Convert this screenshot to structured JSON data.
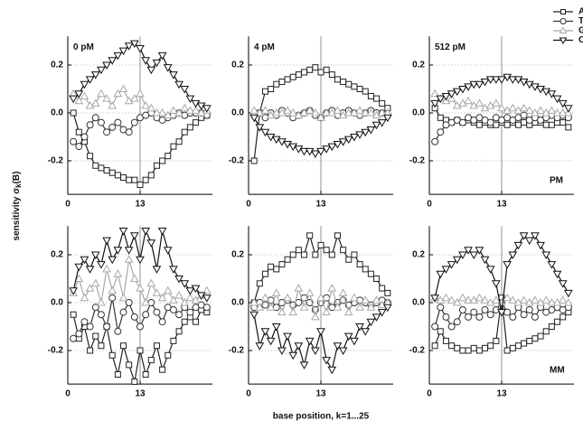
{
  "chart_data": {
    "type": "line",
    "xlabel": "base position, k=1...25",
    "ylabel": {
      "main": "sensitivity σ",
      "sub": "k",
      "end": "(B)"
    },
    "x": [
      1,
      2,
      3,
      4,
      5,
      6,
      7,
      8,
      9,
      10,
      11,
      12,
      13,
      14,
      15,
      16,
      17,
      18,
      19,
      20,
      21,
      22,
      23,
      24,
      25
    ],
    "xlim": [
      0,
      26
    ],
    "xticks": [
      0,
      13
    ],
    "ylim": [
      -0.34,
      0.32
    ],
    "yticks": [
      -0.2,
      {
        "value": 0,
        "label": "0.0"
      },
      0.2
    ],
    "grid": true,
    "legend": [
      {
        "name": "A",
        "color": "#222222",
        "marker": "square"
      },
      {
        "name": "T",
        "color": "#333333",
        "marker": "circle"
      },
      {
        "name": "G",
        "color": "#a8a8a8",
        "marker": "triangle-up"
      },
      {
        "name": "C",
        "color": "#111111",
        "marker": "triangle-down"
      }
    ],
    "rows": [
      "PM",
      "MM"
    ],
    "panels": [
      {
        "title": "0 pM",
        "series": [
          {
            "values": [
              0.0,
              -0.08,
              -0.12,
              -0.18,
              -0.22,
              -0.23,
              -0.24,
              -0.25,
              -0.26,
              -0.27,
              -0.28,
              -0.28,
              -0.3,
              -0.28,
              -0.26,
              -0.22,
              -0.2,
              -0.18,
              -0.14,
              -0.12,
              -0.08,
              -0.06,
              -0.04,
              -0.02,
              -0.01
            ]
          },
          {
            "values": [
              -0.12,
              -0.14,
              -0.1,
              -0.05,
              -0.02,
              -0.04,
              -0.08,
              -0.06,
              -0.04,
              -0.07,
              -0.08,
              -0.04,
              -0.02,
              -0.01,
              0.0,
              -0.02,
              -0.03,
              -0.02,
              -0.01,
              0.0,
              -0.01,
              0.0,
              0.0,
              0.0,
              -0.01
            ]
          },
          {
            "values": [
              0.08,
              0.05,
              0.07,
              0.03,
              0.04,
              0.08,
              0.06,
              0.03,
              0.08,
              0.1,
              0.05,
              0.06,
              0.08,
              0.03,
              0.02,
              0.0,
              0.0,
              -0.01,
              0.01,
              0.0,
              0.02,
              0.01,
              0.01,
              0.0,
              0.01
            ]
          },
          {
            "values": [
              0.06,
              0.08,
              0.12,
              0.14,
              0.16,
              0.18,
              0.2,
              0.22,
              0.24,
              0.26,
              0.28,
              0.29,
              0.27,
              0.22,
              0.18,
              0.21,
              0.24,
              0.19,
              0.16,
              0.12,
              0.1,
              0.06,
              0.04,
              0.03,
              0.02
            ]
          }
        ]
      },
      {
        "title": "4 pM",
        "series": [
          {
            "values": [
              -0.2,
              0.0,
              0.09,
              0.1,
              0.12,
              0.13,
              0.14,
              0.15,
              0.16,
              0.17,
              0.18,
              0.19,
              0.17,
              0.18,
              0.16,
              0.14,
              0.13,
              0.12,
              0.11,
              0.1,
              0.09,
              0.07,
              0.06,
              0.04,
              0.02
            ]
          },
          {
            "values": [
              -0.01,
              0.0,
              -0.02,
              0.0,
              -0.01,
              0.01,
              0.0,
              -0.02,
              -0.01,
              0.0,
              0.01,
              -0.01,
              -0.02,
              0.0,
              0.01,
              -0.01,
              0.0,
              0.01,
              0.0,
              -0.01,
              0.0,
              0.01,
              0.0,
              0.0,
              -0.01
            ]
          },
          {
            "values": [
              0.01,
              0.0,
              0.01,
              -0.01,
              0.0,
              0.0,
              0.01,
              0.0,
              -0.01,
              0.0,
              0.01,
              0.0,
              -0.02,
              0.0,
              0.0,
              0.01,
              -0.01,
              0.0,
              0.0,
              0.01,
              0.0,
              0.0,
              -0.01,
              0.0,
              0.0
            ]
          },
          {
            "values": [
              -0.02,
              -0.06,
              -0.08,
              -0.1,
              -0.11,
              -0.12,
              -0.13,
              -0.14,
              -0.15,
              -0.16,
              -0.16,
              -0.17,
              -0.16,
              -0.15,
              -0.14,
              -0.13,
              -0.12,
              -0.11,
              -0.1,
              -0.09,
              -0.08,
              -0.07,
              -0.05,
              -0.04,
              -0.02
            ]
          }
        ]
      },
      {
        "title": "512 pM",
        "series": [
          {
            "values": [
              0.02,
              -0.02,
              -0.03,
              -0.04,
              -0.03,
              -0.04,
              -0.03,
              -0.04,
              -0.05,
              -0.04,
              -0.05,
              -0.05,
              -0.04,
              -0.05,
              -0.04,
              -0.05,
              -0.04,
              -0.05,
              -0.04,
              -0.04,
              -0.05,
              -0.05,
              -0.04,
              -0.04,
              -0.06
            ]
          },
          {
            "values": [
              -0.12,
              -0.08,
              -0.05,
              -0.04,
              -0.03,
              -0.04,
              -0.02,
              -0.03,
              -0.02,
              -0.03,
              -0.04,
              -0.02,
              -0.03,
              -0.02,
              -0.03,
              -0.02,
              -0.01,
              -0.03,
              -0.02,
              -0.03,
              -0.02,
              -0.01,
              -0.02,
              -0.01,
              -0.02
            ]
          },
          {
            "values": [
              0.08,
              0.06,
              0.05,
              0.06,
              0.03,
              0.04,
              0.05,
              0.03,
              0.04,
              0.02,
              0.03,
              0.04,
              0.02,
              0.01,
              0.02,
              0.01,
              0.02,
              0.01,
              0.0,
              0.01,
              0.0,
              0.01,
              0.0,
              0.0,
              0.0
            ]
          },
          {
            "values": [
              0.04,
              0.06,
              0.07,
              0.08,
              0.09,
              0.1,
              0.11,
              0.12,
              0.12,
              0.13,
              0.14,
              0.14,
              0.14,
              0.15,
              0.14,
              0.14,
              0.13,
              0.12,
              0.11,
              0.1,
              0.09,
              0.08,
              0.06,
              0.04,
              0.02
            ]
          }
        ]
      },
      {
        "series": [
          {
            "values": [
              -0.05,
              -0.15,
              -0.1,
              -0.2,
              -0.14,
              -0.18,
              -0.1,
              -0.22,
              -0.3,
              -0.18,
              -0.26,
              -0.33,
              -0.2,
              -0.3,
              -0.24,
              -0.18,
              -0.28,
              -0.22,
              -0.16,
              -0.12,
              -0.08,
              -0.06,
              -0.08,
              -0.03,
              -0.04
            ]
          },
          {
            "values": [
              -0.15,
              -0.13,
              -0.08,
              -0.1,
              -0.02,
              -0.05,
              -0.1,
              0.02,
              -0.12,
              -0.04,
              0.0,
              -0.06,
              -0.1,
              -0.05,
              0.0,
              -0.04,
              -0.08,
              -0.02,
              -0.03,
              -0.05,
              -0.02,
              -0.04,
              -0.02,
              -0.01,
              -0.02
            ]
          },
          {
            "values": [
              0.04,
              0.1,
              0.02,
              0.06,
              0.08,
              0.0,
              0.14,
              0.05,
              0.12,
              0.02,
              0.18,
              0.1,
              0.06,
              0.0,
              0.08,
              0.04,
              0.02,
              0.05,
              0.01,
              0.03,
              0.0,
              0.02,
              0.01,
              0.03,
              0.05
            ]
          },
          {
            "values": [
              0.05,
              0.15,
              0.18,
              0.14,
              0.2,
              0.16,
              0.26,
              0.18,
              0.22,
              0.3,
              0.22,
              0.28,
              0.18,
              0.3,
              0.25,
              0.14,
              0.3,
              0.22,
              0.14,
              0.1,
              0.08,
              0.05,
              0.06,
              0.03,
              0.02
            ]
          }
        ]
      },
      {
        "series": [
          {
            "values": [
              0.0,
              0.08,
              0.12,
              0.15,
              0.14,
              0.16,
              0.18,
              0.2,
              0.22,
              0.2,
              0.28,
              0.2,
              0.24,
              0.22,
              0.2,
              0.28,
              0.22,
              0.18,
              0.2,
              0.16,
              0.14,
              0.12,
              0.1,
              0.06,
              0.04
            ]
          },
          {
            "values": [
              -0.02,
              0.0,
              -0.01,
              0.01,
              -0.02,
              0.0,
              0.01,
              -0.01,
              0.0,
              0.02,
              0.0,
              -0.03,
              0.0,
              0.02,
              -0.02,
              0.0,
              0.01,
              -0.01,
              0.0,
              0.01,
              0.0,
              -0.01,
              0.0,
              0.01,
              0.0
            ]
          },
          {
            "values": [
              0.0,
              -0.02,
              0.02,
              -0.02,
              0.04,
              -0.04,
              0.02,
              -0.04,
              0.06,
              -0.02,
              0.04,
              -0.06,
              0.02,
              -0.04,
              0.06,
              -0.02,
              0.04,
              -0.04,
              0.02,
              -0.02,
              0.01,
              -0.02,
              0.01,
              -0.01,
              0.0
            ]
          },
          {
            "values": [
              -0.05,
              -0.18,
              -0.12,
              -0.16,
              -0.1,
              -0.2,
              -0.14,
              -0.22,
              -0.18,
              -0.26,
              -0.16,
              -0.2,
              -0.12,
              -0.24,
              -0.28,
              -0.18,
              -0.2,
              -0.14,
              -0.16,
              -0.1,
              -0.12,
              -0.08,
              -0.06,
              -0.04,
              -0.02
            ]
          }
        ]
      },
      {
        "series": [
          {
            "values": [
              -0.18,
              -0.12,
              -0.16,
              -0.18,
              -0.19,
              -0.2,
              -0.2,
              -0.19,
              -0.2,
              -0.19,
              -0.18,
              -0.16,
              0.02,
              -0.2,
              -0.19,
              -0.18,
              -0.17,
              -0.16,
              -0.15,
              -0.14,
              -0.12,
              -0.1,
              -0.08,
              -0.06,
              -0.04
            ]
          },
          {
            "values": [
              -0.1,
              -0.02,
              -0.06,
              -0.1,
              -0.08,
              -0.03,
              -0.06,
              -0.04,
              -0.06,
              -0.03,
              -0.05,
              -0.03,
              0.0,
              -0.04,
              -0.06,
              -0.02,
              -0.05,
              -0.03,
              -0.06,
              -0.02,
              -0.04,
              -0.03,
              -0.02,
              -0.03,
              -0.02
            ]
          },
          {
            "values": [
              0.02,
              0.01,
              0.02,
              0.01,
              0.0,
              0.02,
              0.01,
              0.01,
              0.02,
              0.01,
              0.0,
              0.01,
              0.0,
              0.02,
              0.01,
              0.0,
              0.01,
              0.0,
              0.01,
              0.0,
              0.01,
              0.0,
              0.0,
              0.01,
              0.0
            ]
          },
          {
            "values": [
              0.02,
              0.12,
              0.14,
              0.16,
              0.18,
              0.2,
              0.22,
              0.2,
              0.22,
              0.18,
              0.14,
              0.08,
              -0.04,
              0.16,
              0.2,
              0.24,
              0.28,
              0.26,
              0.28,
              0.24,
              0.2,
              0.16,
              0.12,
              0.08,
              0.04
            ]
          }
        ]
      }
    ]
  }
}
